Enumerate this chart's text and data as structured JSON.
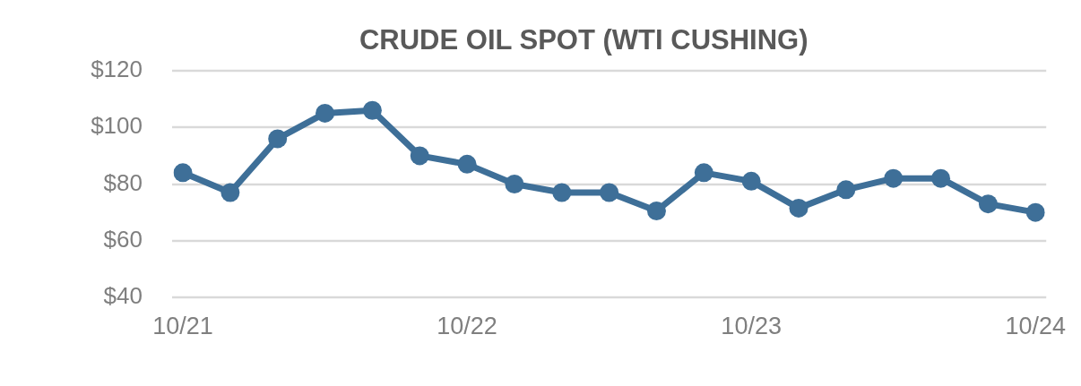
{
  "chart_data": {
    "type": "line",
    "title": "CRUDE OIL SPOT (WTI CUSHING)",
    "categories": [
      "10/21",
      null,
      null,
      null,
      null,
      null,
      "10/22",
      null,
      null,
      null,
      null,
      null,
      "10/23",
      null,
      null,
      null,
      null,
      null,
      "10/24"
    ],
    "series": [
      {
        "color": "#3e6f98",
        "values": [
          84,
          77,
          96,
          105,
          106,
          90,
          87,
          80,
          77,
          77,
          70.5,
          84,
          81,
          71.5,
          78,
          82,
          82,
          73,
          70
        ]
      }
    ],
    "ylim": [
      40,
      120
    ],
    "yticks": [
      {
        "value": 40,
        "label": "$40"
      },
      {
        "value": 60,
        "label": "$60"
      },
      {
        "value": 80,
        "label": "$80"
      },
      {
        "value": 100,
        "label": "$100"
      },
      {
        "value": 120,
        "label": "$120"
      }
    ],
    "grid": "y",
    "marker": "circle",
    "line_style": "solid"
  }
}
